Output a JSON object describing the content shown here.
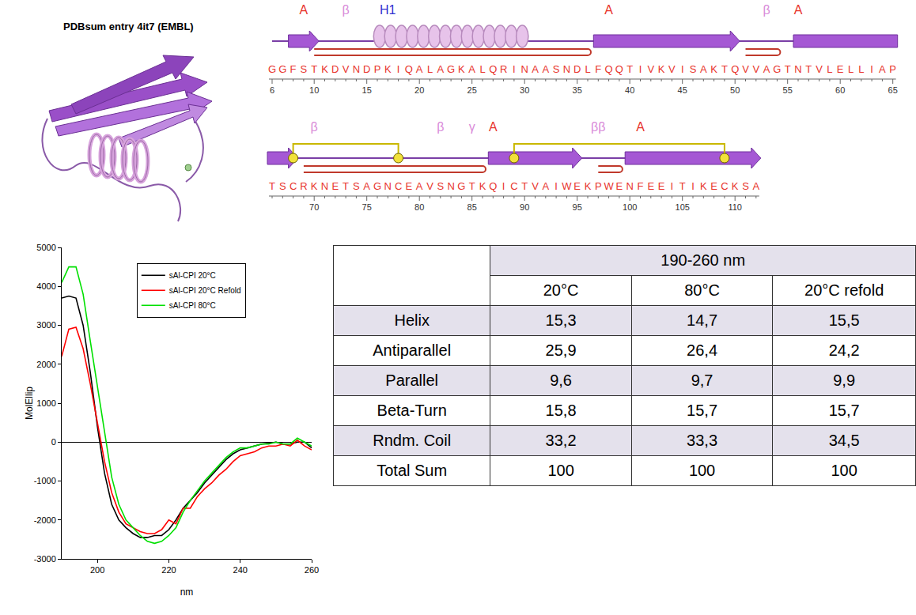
{
  "structure_panel": {
    "title": "PDBsum entry 4it7 (EMBL)"
  },
  "topology": {
    "rows": [
      {
        "start": 6,
        "sequence": "GGFSTKDVNDPKIQALAGKALQRINAASNDLFQQTIVKVISAKTQVVAGTNTVLELLIAP",
        "ruler": [
          6,
          10,
          15,
          20,
          25,
          30,
          35,
          40,
          45,
          50,
          55,
          60,
          65
        ],
        "labels": [
          {
            "text": "A",
            "residue": 9,
            "color": "#e8342c"
          },
          {
            "text": "β",
            "residue": 13,
            "color": "#d98ad9"
          },
          {
            "text": "H1",
            "residue": 17,
            "color": "#2f2fd0"
          },
          {
            "text": "A",
            "residue": 38,
            "color": "#e8342c"
          },
          {
            "text": "β",
            "residue": 53,
            "color": "#d98ad9"
          },
          {
            "text": "A",
            "residue": 56,
            "color": "#e8342c"
          }
        ],
        "strands": [
          [
            8,
            10
          ],
          [
            37,
            50
          ],
          [
            56,
            65
          ]
        ],
        "helices": [
          [
            16,
            30
          ]
        ],
        "hairpins": [
          [
            10,
            36
          ],
          [
            51,
            54
          ]
        ],
        "disulfides": []
      },
      {
        "start": 66,
        "sequence": "TSCRKNETSAGNCEAVSNGTKQICTVAIWEKPWENFEEITIKECKSA",
        "ruler": [
          70,
          75,
          80,
          85,
          90,
          95,
          100,
          105,
          110
        ],
        "labels": [
          {
            "text": "β",
            "residue": 70,
            "color": "#d98ad9"
          },
          {
            "text": "β",
            "residue": 82,
            "color": "#d98ad9"
          },
          {
            "text": "γ",
            "residue": 85,
            "color": "#d98ad9"
          },
          {
            "text": "A",
            "residue": 87,
            "color": "#e8342c"
          },
          {
            "text": "ββ",
            "residue": 97,
            "color": "#d98ad9"
          },
          {
            "text": "A",
            "residue": 101,
            "color": "#e8342c"
          }
        ],
        "strands": [
          [
            66,
            68
          ],
          [
            87,
            95
          ],
          [
            100,
            112
          ]
        ],
        "helices": [],
        "hairpins": [
          [
            69,
            86
          ],
          [
            97,
            99
          ]
        ],
        "disulfides": [
          [
            68,
            78
          ],
          [
            89,
            109
          ]
        ]
      }
    ]
  },
  "chart_data": {
    "type": "line",
    "x_label": "nm",
    "y_label": "MolEllip",
    "x": [
      190,
      192,
      194,
      196,
      198,
      200,
      202,
      204,
      206,
      208,
      210,
      212,
      214,
      216,
      218,
      220,
      222,
      224,
      226,
      228,
      230,
      232,
      234,
      236,
      238,
      240,
      242,
      244,
      246,
      248,
      250,
      252,
      254,
      256,
      258,
      260
    ],
    "series": [
      {
        "name": "sAl-CPI 20°C",
        "color": "#000000",
        "values": [
          3700,
          3750,
          3700,
          3000,
          1800,
          400,
          -800,
          -1600,
          -2000,
          -2200,
          -2350,
          -2450,
          -2450,
          -2400,
          -2400,
          -2250,
          -2000,
          -1700,
          -1500,
          -1300,
          -1050,
          -850,
          -650,
          -450,
          -300,
          -200,
          -150,
          -100,
          -50,
          -30,
          0,
          -50,
          -50,
          0,
          0,
          -150
        ]
      },
      {
        "name": "sAl-CPI 20°C Refold",
        "color": "#ff0000",
        "values": [
          2200,
          2900,
          2950,
          2400,
          1500,
          500,
          -500,
          -1300,
          -1800,
          -2100,
          -2200,
          -2300,
          -2350,
          -2350,
          -2250,
          -2000,
          -2100,
          -1700,
          -1700,
          -1400,
          -1200,
          -1050,
          -850,
          -700,
          -500,
          -350,
          -300,
          -250,
          -150,
          -100,
          -100,
          -50,
          -100,
          50,
          -100,
          -200
        ]
      },
      {
        "name": "sAl-CPI 80°C",
        "color": "#00e000",
        "values": [
          4100,
          4500,
          4500,
          3800,
          2600,
          1400,
          200,
          -900,
          -1600,
          -2000,
          -2200,
          -2400,
          -2550,
          -2600,
          -2550,
          -2400,
          -2200,
          -1800,
          -1500,
          -1250,
          -1000,
          -800,
          -600,
          -400,
          -250,
          -150,
          -150,
          -100,
          -50,
          -50,
          0,
          -50,
          -50,
          100,
          0,
          -100
        ]
      }
    ],
    "xlim": [
      190,
      260
    ],
    "xticks": [
      200,
      220,
      240,
      260
    ],
    "ylim": [
      -3000,
      5000
    ],
    "yticks": [
      -3000,
      -2000,
      -1000,
      0,
      1000,
      2000,
      3000,
      4000,
      5000
    ],
    "grid": false,
    "legend": "top"
  },
  "table": {
    "header_span": "190-260 nm",
    "columns": [
      "20°C",
      "80°C",
      "20°C refold"
    ],
    "rows": [
      [
        "Helix",
        "15,3",
        "14,7",
        "15,5"
      ],
      [
        "Antiparallel",
        "25,9",
        "26,4",
        "24,2"
      ],
      [
        "Parallel",
        "9,6",
        "9,7",
        "9,9"
      ],
      [
        "Beta-Turn",
        "15,8",
        "15,7",
        "15,7"
      ],
      [
        "Rndm. Coil",
        "33,2",
        "33,3",
        "34,5"
      ],
      [
        "Total Sum",
        "100",
        "100",
        "100"
      ]
    ]
  }
}
